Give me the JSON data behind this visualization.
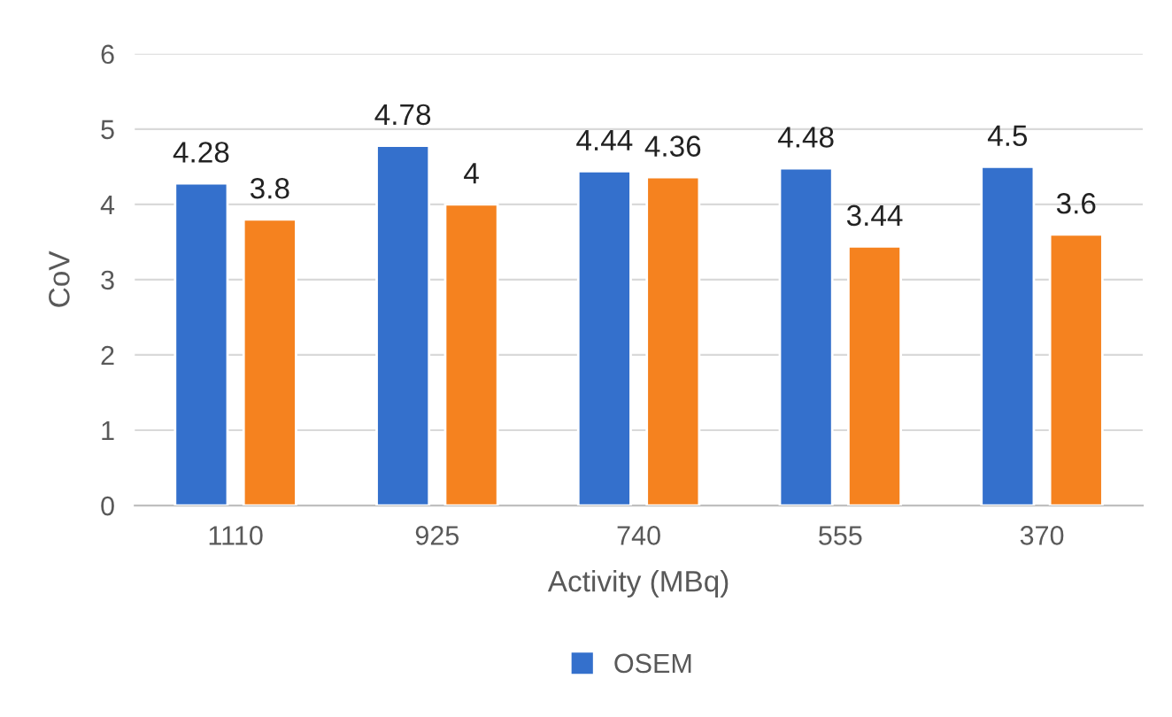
{
  "chart_data": {
    "type": "bar",
    "xlabel": "Activity (MBq)",
    "ylabel": "CoV",
    "categories": [
      "1110",
      "925",
      "740",
      "555",
      "370"
    ],
    "series": [
      {
        "name": "OSEM",
        "color": "#3470cc",
        "values": [
          4.28,
          4.78,
          4.44,
          4.48,
          4.5
        ]
      },
      {
        "color": "#f5821f",
        "values": [
          3.8,
          4,
          4.36,
          3.44,
          3.6
        ]
      }
    ],
    "ylim": [
      0,
      6
    ],
    "yticks": [
      0,
      1,
      2,
      3,
      4,
      5,
      6
    ],
    "grid": "y",
    "legend": "bottom",
    "data_labels": true
  }
}
